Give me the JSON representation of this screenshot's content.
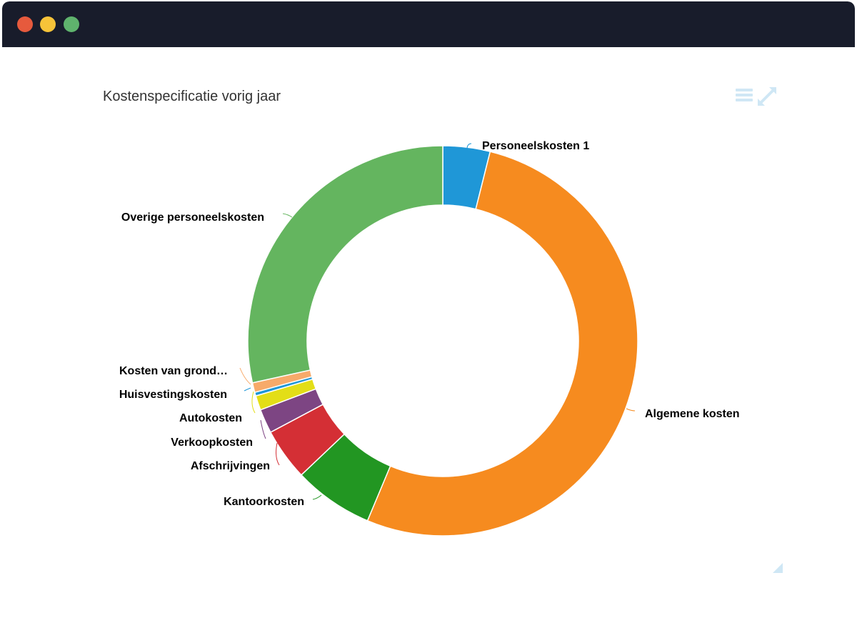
{
  "window": {
    "buttons": [
      "close",
      "minimize",
      "maximize"
    ]
  },
  "toolbar": {
    "menu_icon": "menu-icon",
    "expand_icon": "expand-icon"
  },
  "chart_data": {
    "type": "pie",
    "variant": "donut",
    "title": "Kostenspecificatie vorig jaar",
    "unit": "percent",
    "slices": [
      {
        "name": "Personeelskosten 1",
        "value": 3.9,
        "color": "#1f97d7"
      },
      {
        "name": "Algemene kosten",
        "value": 52.3,
        "color": "#f68b1f"
      },
      {
        "name": "Kantoorkosten",
        "value": 6.6,
        "color": "#229622"
      },
      {
        "name": "Afschrijvingen",
        "value": 4.3,
        "color": "#d42f35"
      },
      {
        "name": "Verkoopkosten",
        "value": 2.0,
        "color": "#7d4583"
      },
      {
        "name": "Autokosten",
        "value": 1.2,
        "color": "#e3de17"
      },
      {
        "name": "Huisvestingskosten",
        "value": 0.3,
        "color": "#1f97d7"
      },
      {
        "name": "Kosten van grond…",
        "value": 0.8,
        "color": "#f7aa6a"
      },
      {
        "name": "Overige personeelskosten",
        "value": 28.4,
        "color": "#64b55f"
      }
    ]
  }
}
